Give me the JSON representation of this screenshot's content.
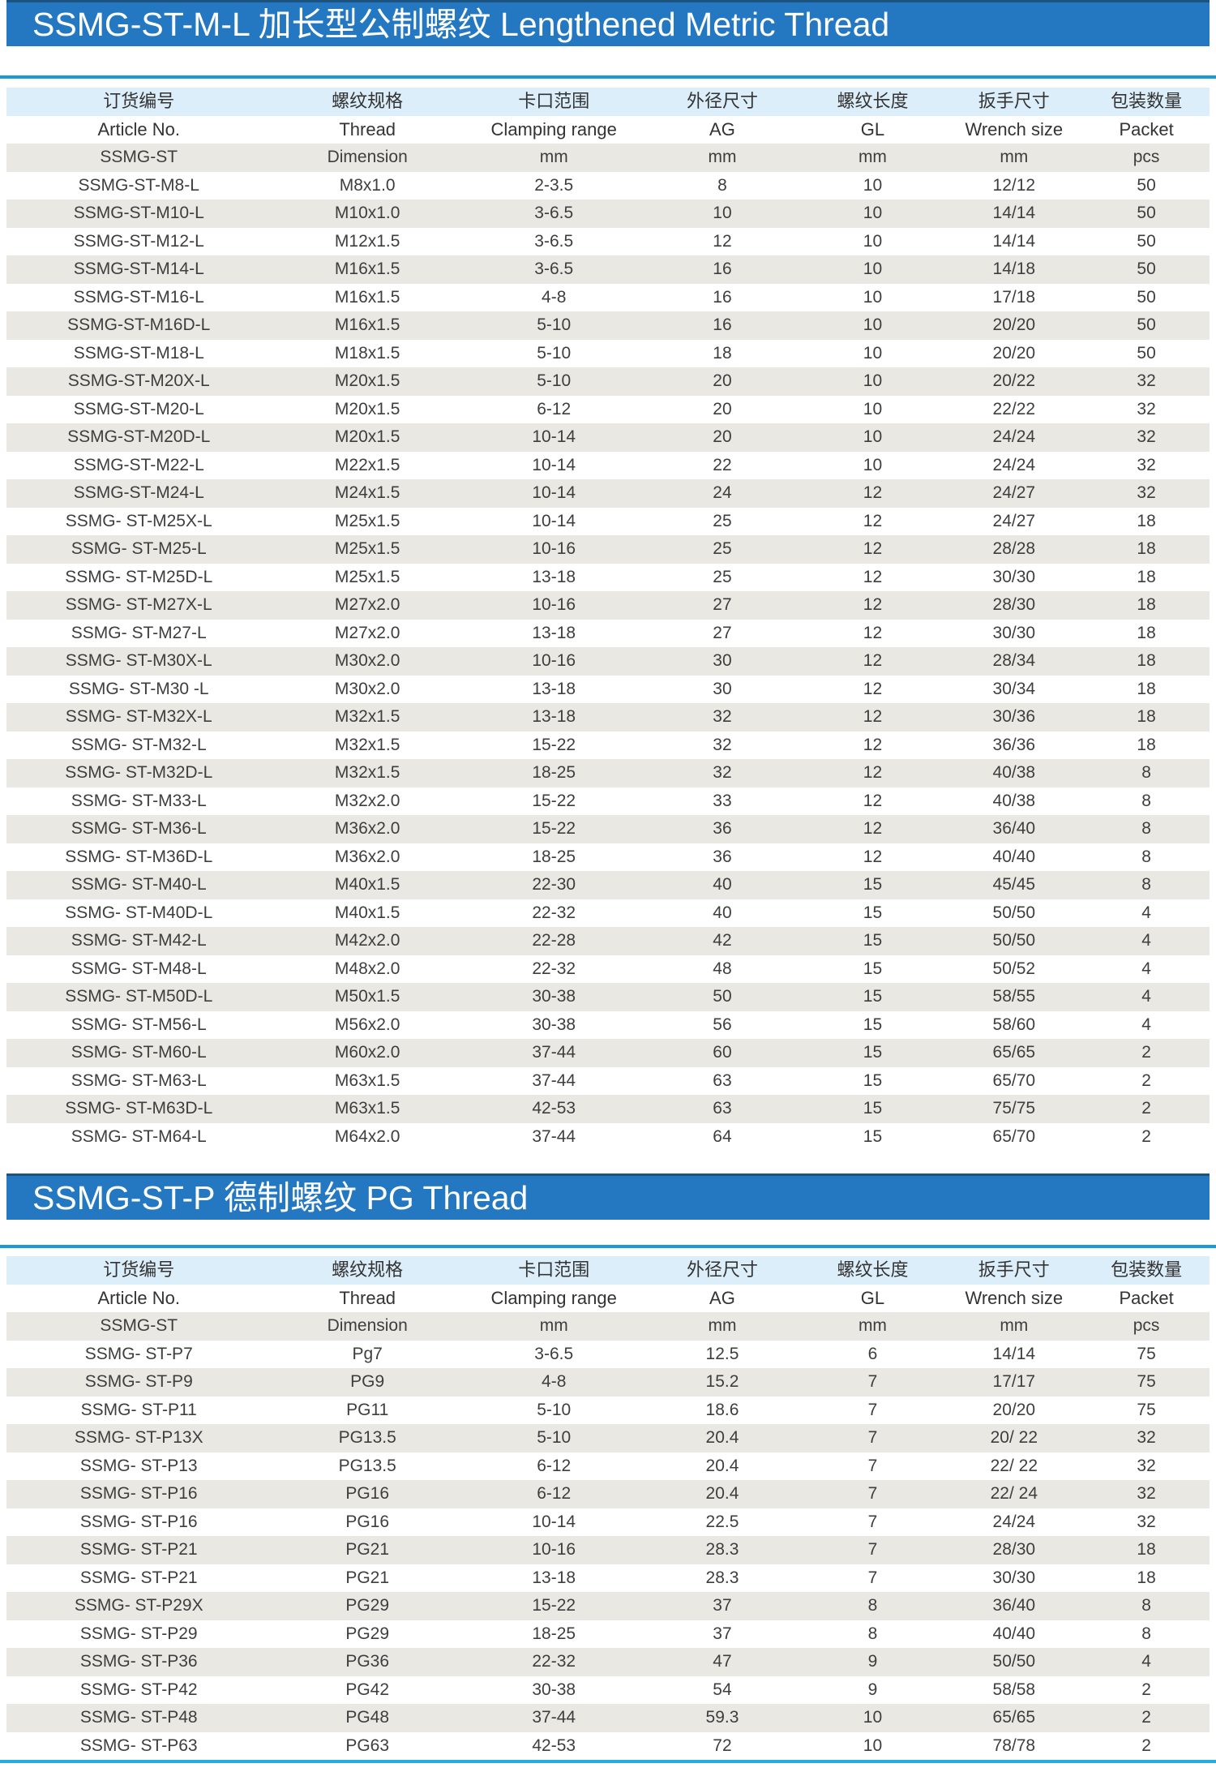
{
  "theme": {
    "banner_blue": "#2478c2",
    "banner_border_blue": "#1e5380",
    "rule_blue": "#199ad6",
    "header_row_blue": "#dceefa",
    "row_gray": "#e9e8e3",
    "text_color": "#3e3e3e",
    "bottom_line_cyan": "#29abe2"
  },
  "sections": [
    {
      "banner_title": "SSMG-ST-M-L 加长型公制螺纹 Lengthened Metric Thread",
      "columns_cn": [
        "订货编号",
        "螺纹规格",
        "卡口范围",
        "外径尺寸",
        "螺纹长度",
        "扳手尺寸",
        "包装数量"
      ],
      "columns_en": [
        "Article No.",
        "Thread",
        "Clamping range",
        "AG",
        "GL",
        "Wrench size",
        "Packet"
      ],
      "columns_unit": [
        "SSMG-ST",
        "Dimension",
        "mm",
        "mm",
        "mm",
        "mm",
        "pcs"
      ],
      "rows": [
        [
          "SSMG-ST-M8-L",
          "M8x1.0",
          "2-3.5",
          "8",
          "10",
          "12/12",
          "50"
        ],
        [
          "SSMG-ST-M10-L",
          "M10x1.0",
          "3-6.5",
          "10",
          "10",
          "14/14",
          "50"
        ],
        [
          "SSMG-ST-M12-L",
          "M12x1.5",
          "3-6.5",
          "12",
          "10",
          "14/14",
          "50"
        ],
        [
          "SSMG-ST-M14-L",
          "M16x1.5",
          "3-6.5",
          "16",
          "10",
          "14/18",
          "50"
        ],
        [
          "SSMG-ST-M16-L",
          "M16x1.5",
          "4-8",
          "16",
          "10",
          "17/18",
          "50"
        ],
        [
          "SSMG-ST-M16D-L",
          "M16x1.5",
          "5-10",
          "16",
          "10",
          "20/20",
          "50"
        ],
        [
          "SSMG-ST-M18-L",
          "M18x1.5",
          "5-10",
          "18",
          "10",
          "20/20",
          "50"
        ],
        [
          "SSMG-ST-M20X-L",
          "M20x1.5",
          "5-10",
          "20",
          "10",
          "20/22",
          "32"
        ],
        [
          "SSMG-ST-M20-L",
          "M20x1.5",
          "6-12",
          "20",
          "10",
          "22/22",
          "32"
        ],
        [
          "SSMG-ST-M20D-L",
          "M20x1.5",
          "10-14",
          "20",
          "10",
          "24/24",
          "32"
        ],
        [
          "SSMG-ST-M22-L",
          "M22x1.5",
          "10-14",
          "22",
          "10",
          "24/24",
          "32"
        ],
        [
          "SSMG-ST-M24-L",
          "M24x1.5",
          "10-14",
          "24",
          "12",
          "24/27",
          "32"
        ],
        [
          "SSMG- ST-M25X-L",
          "M25x1.5",
          "10-14",
          "25",
          "12",
          "24/27",
          "18"
        ],
        [
          "SSMG- ST-M25-L",
          "M25x1.5",
          "10-16",
          "25",
          "12",
          "28/28",
          "18"
        ],
        [
          "SSMG- ST-M25D-L",
          "M25x1.5",
          "13-18",
          "25",
          "12",
          "30/30",
          "18"
        ],
        [
          "SSMG- ST-M27X-L",
          "M27x2.0",
          "10-16",
          "27",
          "12",
          "28/30",
          "18"
        ],
        [
          "SSMG- ST-M27-L",
          "M27x2.0",
          "13-18",
          "27",
          "12",
          "30/30",
          "18"
        ],
        [
          "SSMG- ST-M30X-L",
          "M30x2.0",
          "10-16",
          "30",
          "12",
          "28/34",
          "18"
        ],
        [
          "SSMG- ST-M30 -L",
          "M30x2.0",
          "13-18",
          "30",
          "12",
          "30/34",
          "18"
        ],
        [
          "SSMG- ST-M32X-L",
          "M32x1.5",
          "13-18",
          "32",
          "12",
          "30/36",
          "18"
        ],
        [
          "SSMG- ST-M32-L",
          "M32x1.5",
          "15-22",
          "32",
          "12",
          "36/36",
          "18"
        ],
        [
          "SSMG- ST-M32D-L",
          "M32x1.5",
          "18-25",
          "32",
          "12",
          "40/38",
          "8"
        ],
        [
          "SSMG- ST-M33-L",
          "M32x2.0",
          "15-22",
          "33",
          "12",
          "40/38",
          "8"
        ],
        [
          "SSMG- ST-M36-L",
          "M36x2.0",
          "15-22",
          "36",
          "12",
          "36/40",
          "8"
        ],
        [
          "SSMG- ST-M36D-L",
          "M36x2.0",
          "18-25",
          "36",
          "12",
          "40/40",
          "8"
        ],
        [
          "SSMG- ST-M40-L",
          "M40x1.5",
          "22-30",
          "40",
          "15",
          "45/45",
          "8"
        ],
        [
          "SSMG- ST-M40D-L",
          "M40x1.5",
          "22-32",
          "40",
          "15",
          "50/50",
          "4"
        ],
        [
          "SSMG- ST-M42-L",
          "M42x2.0",
          "22-28",
          "42",
          "15",
          "50/50",
          "4"
        ],
        [
          "SSMG- ST-M48-L",
          "M48x2.0",
          "22-32",
          "48",
          "15",
          "50/52",
          "4"
        ],
        [
          "SSMG- ST-M50D-L",
          "M50x1.5",
          "30-38",
          "50",
          "15",
          "58/55",
          "4"
        ],
        [
          "SSMG- ST-M56-L",
          "M56x2.0",
          "30-38",
          "56",
          "15",
          "58/60",
          "4"
        ],
        [
          "SSMG- ST-M60-L",
          "M60x2.0",
          "37-44",
          "60",
          "15",
          "65/65",
          "2"
        ],
        [
          "SSMG- ST-M63-L",
          "M63x1.5",
          "37-44",
          "63",
          "15",
          "65/70",
          "2"
        ],
        [
          "SSMG- ST-M63D-L",
          "M63x1.5",
          "42-53",
          "63",
          "15",
          "75/75",
          "2"
        ],
        [
          "SSMG- ST-M64-L",
          "M64x2.0",
          "37-44",
          "64",
          "15",
          "65/70",
          "2"
        ]
      ]
    },
    {
      "banner_title": "SSMG-ST-P 德制螺纹 PG Thread",
      "columns_cn": [
        "订货编号",
        "螺纹规格",
        "卡口范围",
        "外径尺寸",
        "螺纹长度",
        "扳手尺寸",
        "包装数量"
      ],
      "columns_en": [
        "Article No.",
        "Thread",
        "Clamping range",
        "AG",
        "GL",
        "Wrench size",
        "Packet"
      ],
      "columns_unit": [
        "SSMG-ST",
        "Dimension",
        "mm",
        "mm",
        "mm",
        "mm",
        "pcs"
      ],
      "rows": [
        [
          "SSMG- ST-P7",
          "Pg7",
          "3-6.5",
          "12.5",
          "6",
          "14/14",
          "75"
        ],
        [
          "SSMG- ST-P9",
          "PG9",
          "4-8",
          "15.2",
          "7",
          "17/17",
          "75"
        ],
        [
          "SSMG- ST-P11",
          "PG11",
          "5-10",
          "18.6",
          "7",
          "20/20",
          "75"
        ],
        [
          "SSMG- ST-P13X",
          "PG13.5",
          "5-10",
          "20.4",
          "7",
          "20/ 22",
          "32"
        ],
        [
          "SSMG- ST-P13",
          "PG13.5",
          "6-12",
          "20.4",
          "7",
          "22/ 22",
          "32"
        ],
        [
          "SSMG- ST-P16",
          "PG16",
          "6-12",
          "20.4",
          "7",
          "22/ 24",
          "32"
        ],
        [
          "SSMG- ST-P16",
          "PG16",
          "10-14",
          "22.5",
          "7",
          "24/24",
          "32"
        ],
        [
          "SSMG- ST-P21",
          "PG21",
          "10-16",
          "28.3",
          "7",
          "28/30",
          "18"
        ],
        [
          "SSMG- ST-P21",
          "PG21",
          "13-18",
          "28.3",
          "7",
          "30/30",
          "18"
        ],
        [
          "SSMG- ST-P29X",
          "PG29",
          "15-22",
          "37",
          "8",
          "36/40",
          "8"
        ],
        [
          "SSMG- ST-P29",
          "PG29",
          "18-25",
          "37",
          "8",
          "40/40",
          "8"
        ],
        [
          "SSMG- ST-P36",
          "PG36",
          "22-32",
          "47",
          "9",
          "50/50",
          "4"
        ],
        [
          "SSMG- ST-P42",
          "PG42",
          "30-38",
          "54",
          "9",
          "58/58",
          "2"
        ],
        [
          "SSMG- ST-P48",
          "PG48",
          "37-44",
          "59.3",
          "10",
          "65/65",
          "2"
        ],
        [
          "SSMG- ST-P63",
          "PG63",
          "42-53",
          "72",
          "10",
          "78/78",
          "2"
        ]
      ]
    }
  ]
}
